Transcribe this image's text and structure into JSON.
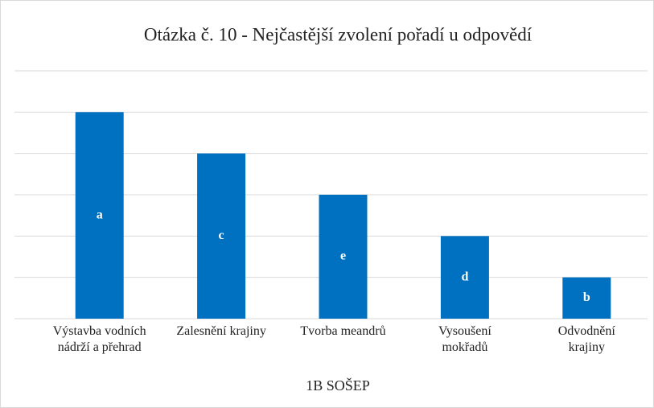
{
  "chart_data": {
    "type": "bar",
    "title": "Otázka č. 10 - Nejčastější zvolení pořadí u odpovědí",
    "categories": [
      "Výstavba vodních\nnádrží a přehrad",
      "Zalesnění krajiny",
      "Tvorba meandrů",
      "Vysoušení\nmokřadů",
      "Odvodnění\nkrajiny"
    ],
    "values": [
      5,
      4,
      3,
      2,
      1
    ],
    "bar_labels": [
      "a",
      "c",
      "e",
      "d",
      "b"
    ],
    "color": "#0070c0",
    "x_label": "1B SOŠEP",
    "ylim": [
      0,
      6
    ],
    "yticks": [
      0,
      1,
      2,
      3,
      4,
      5,
      6
    ],
    "grid": true
  }
}
